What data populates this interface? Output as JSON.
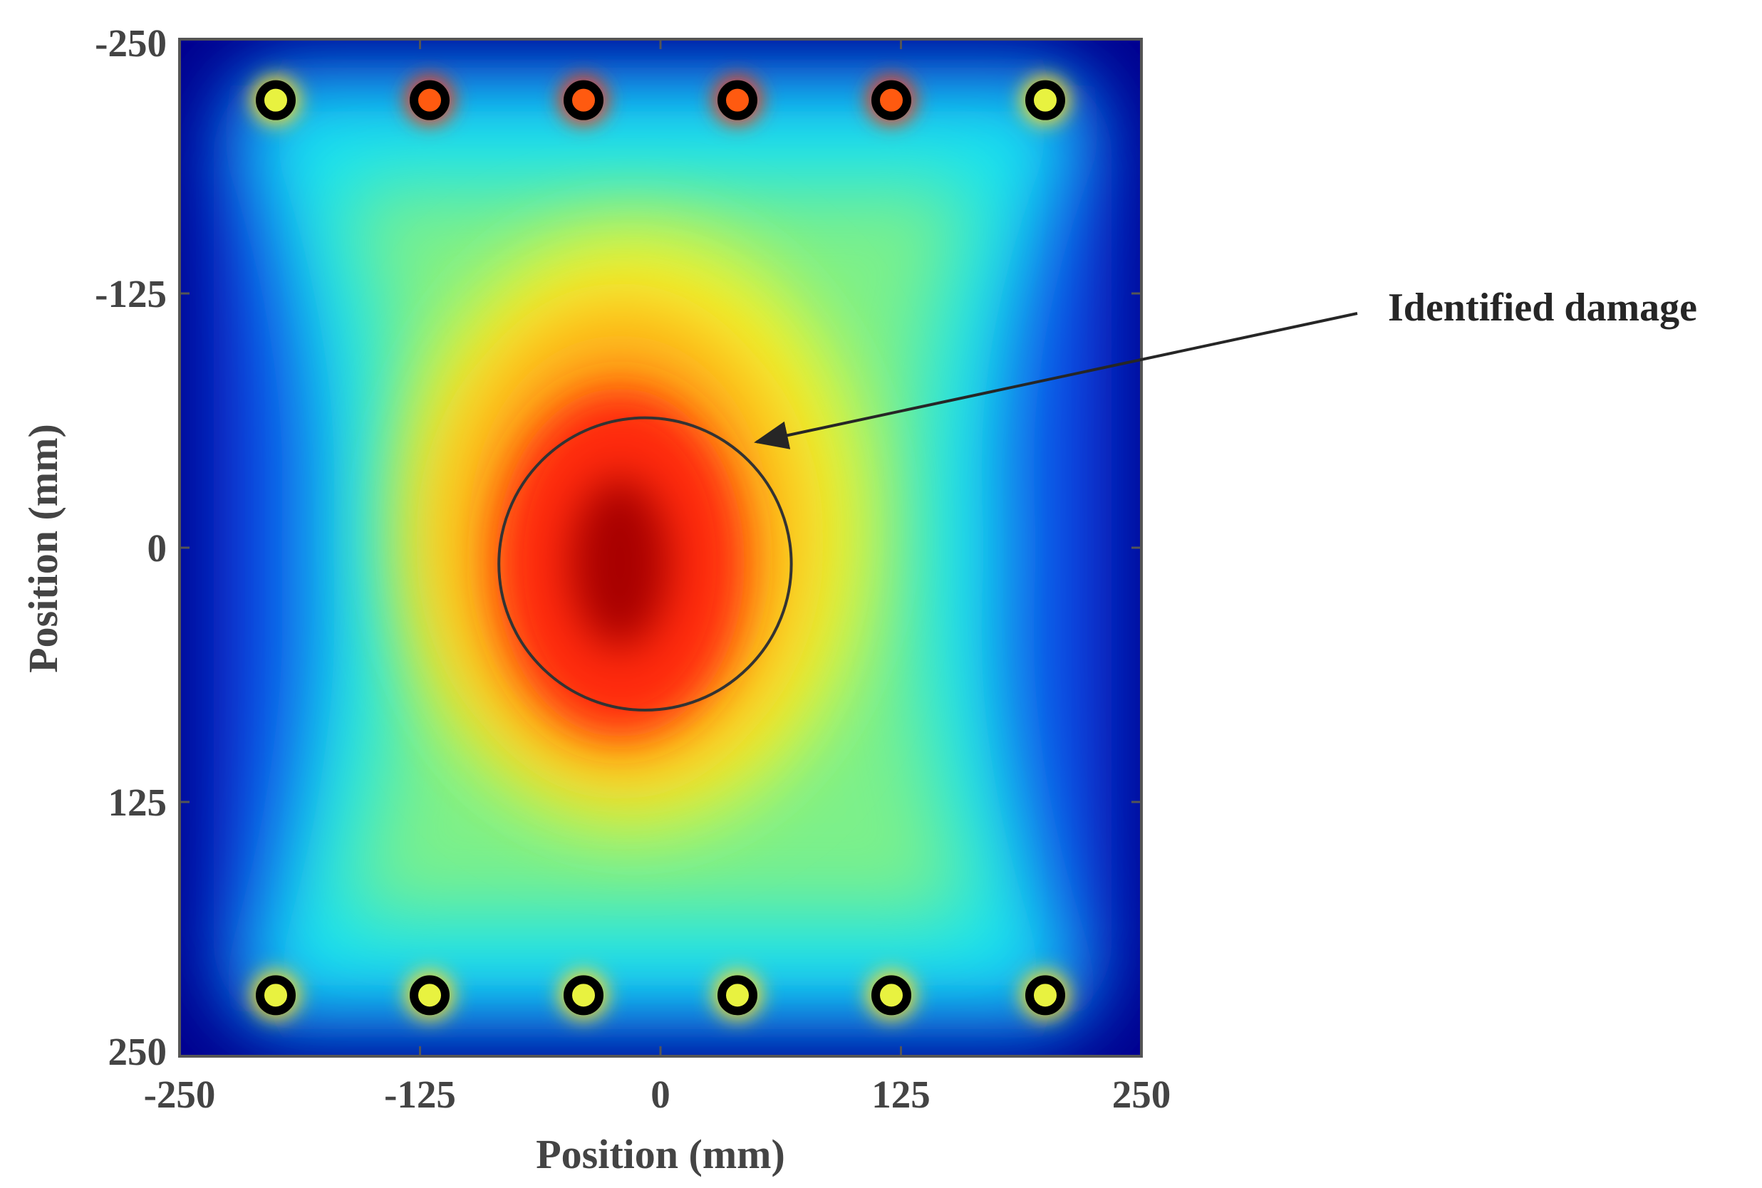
{
  "chart_data": {
    "type": "heatmap",
    "title": "",
    "xlabel": "Position (mm)",
    "ylabel": "Position (mm)",
    "xlim": [
      -250,
      250
    ],
    "ylim": [
      -250,
      250
    ],
    "y_reversed": true,
    "x_ticks": [
      "-250",
      "-125",
      "0",
      "125",
      "250"
    ],
    "y_ticks": [
      "-250",
      "-125",
      "0",
      "125",
      "250"
    ],
    "x_tick_values": [
      -250,
      -125,
      0,
      125,
      250
    ],
    "y_tick_values": [
      -250,
      -125,
      0,
      125,
      250
    ],
    "colormap": "jet",
    "grid": false,
    "sensors": [
      {
        "x": -200,
        "y": -220
      },
      {
        "x": -120,
        "y": -220
      },
      {
        "x": -40,
        "y": -220
      },
      {
        "x": 40,
        "y": -220
      },
      {
        "x": 120,
        "y": -220
      },
      {
        "x": 200,
        "y": -220
      },
      {
        "x": -200,
        "y": 220
      },
      {
        "x": -120,
        "y": 220
      },
      {
        "x": -40,
        "y": 220
      },
      {
        "x": 40,
        "y": 220
      },
      {
        "x": 120,
        "y": 220
      },
      {
        "x": 200,
        "y": 220
      }
    ],
    "damage_circle": {
      "cx": -8,
      "cy": 8,
      "r": 76
    },
    "annotation": {
      "text": "Identified damage",
      "arrow_to": {
        "x": 50,
        "y": -52
      }
    },
    "colors": {
      "frame": "#555555",
      "sensor_ring": "#000000",
      "circle": "#333333",
      "arrow": "#262626"
    }
  }
}
